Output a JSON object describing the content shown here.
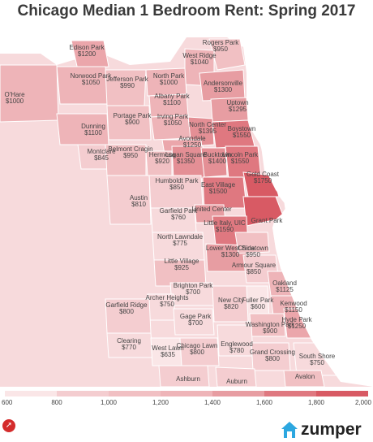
{
  "title": "Chicago Median 1 Bedroom Rent: Spring 2017",
  "neighborhoods": [
    {
      "name": "Edison Park",
      "rent": "$1200",
      "color": "#eba6ab"
    },
    {
      "name": "Rogers Park",
      "rent": "$950",
      "color": "#f1c0c3"
    },
    {
      "name": "West Ridge",
      "rent": "$1040",
      "color": "#eeb4b8"
    },
    {
      "name": "Norwood Park",
      "rent": "$1050",
      "color": "#eeb4b8"
    },
    {
      "name": "Jefferson Park",
      "rent": "$990",
      "color": "#f1c0c3"
    },
    {
      "name": "North Park",
      "rent": "$1000",
      "color": "#eeb4b8"
    },
    {
      "name": "Andersonville",
      "rent": "$1300",
      "color": "#e79da2"
    },
    {
      "name": "Albany Park",
      "rent": "$1100",
      "color": "#eeb4b8"
    },
    {
      "name": "O'Hare",
      "rent": "$1000",
      "color": "#eeb4b8"
    },
    {
      "name": "Uptown",
      "rent": "$1295",
      "color": "#e79da2"
    },
    {
      "name": "Portage Park",
      "rent": "$900",
      "color": "#f1c0c3"
    },
    {
      "name": "Irving Park",
      "rent": "$1050",
      "color": "#eeb4b8"
    },
    {
      "name": "North Center",
      "rent": "$1395",
      "color": "#e48f95"
    },
    {
      "name": "Boystown",
      "rent": "$1550",
      "color": "#df7880"
    },
    {
      "name": "Dunning",
      "rent": "$1100",
      "color": "#eeb4b8"
    },
    {
      "name": "Avondale",
      "rent": "$1250",
      "color": "#eba6ab"
    },
    {
      "name": "Montclare",
      "rent": "$845",
      "color": "#f4cdd0"
    },
    {
      "name": "Belmont Cragin",
      "rent": "$950",
      "color": "#f1c0c3"
    },
    {
      "name": "Hermosa",
      "rent": "$920",
      "color": "#f1c0c3"
    },
    {
      "name": "Logan Square",
      "rent": "$1350",
      "color": "#e48f95"
    },
    {
      "name": "Bucktown",
      "rent": "$1400",
      "color": "#e48f95"
    },
    {
      "name": "Lincoln Park",
      "rent": "$1550",
      "color": "#df7880"
    },
    {
      "name": "Gold Coast",
      "rent": "$1750",
      "color": "#d85a64"
    },
    {
      "name": "Humboldt Park",
      "rent": "$850",
      "color": "#f4cdd0"
    },
    {
      "name": "East Village",
      "rent": "$1500",
      "color": "#df7880"
    },
    {
      "name": "Austin",
      "rent": "$810",
      "color": "#f4cdd0"
    },
    {
      "name": "United Center",
      "rent": "",
      "color": "#e79da2"
    },
    {
      "name": "Grant Park",
      "rent": "",
      "color": "#d85a64"
    },
    {
      "name": "Garfield Park",
      "rent": "$760",
      "color": "#f7dadc"
    },
    {
      "name": "Little Italy, UIC",
      "rent": "$1590",
      "color": "#df7880"
    },
    {
      "name": "North Lawndale",
      "rent": "$775",
      "color": "#f7dadc"
    },
    {
      "name": "Lower West Side",
      "rent": "$1300",
      "color": "#e79da2"
    },
    {
      "name": "Chinatown",
      "rent": "$950",
      "color": "#f1c0c3"
    },
    {
      "name": "Armour Square",
      "rent": "$850",
      "color": "#f4cdd0"
    },
    {
      "name": "Little Village",
      "rent": "$925",
      "color": "#f1c0c3"
    },
    {
      "name": "Brighton Park",
      "rent": "$700",
      "color": "#f7dadc"
    },
    {
      "name": "Oakland",
      "rent": "$1125",
      "color": "#eeb4b8"
    },
    {
      "name": "Archer Heights",
      "rent": "$750",
      "color": "#f7dadc"
    },
    {
      "name": "New City",
      "rent": "$820",
      "color": "#f4cdd0"
    },
    {
      "name": "Fuller Park",
      "rent": "$600",
      "color": "#fae6e7"
    },
    {
      "name": "Kenwood",
      "rent": "$1150",
      "color": "#eeb4b8"
    },
    {
      "name": "Garfield Ridge",
      "rent": "$800",
      "color": "#f4cdd0"
    },
    {
      "name": "Gage Park",
      "rent": "$700",
      "color": "#f7dadc"
    },
    {
      "name": "Washington Park",
      "rent": "$900",
      "color": "#f1c0c3"
    },
    {
      "name": "Hyde Park",
      "rent": "$1250",
      "color": "#eba6ab"
    },
    {
      "name": "Clearing",
      "rent": "$770",
      "color": "#f7dadc"
    },
    {
      "name": "West Lawn",
      "rent": "$635",
      "color": "#fae6e7"
    },
    {
      "name": "Chicago Lawn",
      "rent": "$800",
      "color": "#f4cdd0"
    },
    {
      "name": "Englewood",
      "rent": "$780",
      "color": "#f7dadc"
    },
    {
      "name": "Grand Crossing",
      "rent": "$800",
      "color": "#f4cdd0"
    },
    {
      "name": "South Shore",
      "rent": "$750",
      "color": "#f7dadc"
    },
    {
      "name": "Ashburn",
      "rent": "",
      "color": "#f4cdd0"
    },
    {
      "name": "Auburn",
      "rent": "",
      "color": "#f4cdd0"
    },
    {
      "name": "Avalon",
      "rent": "",
      "color": "#f1c0c3"
    }
  ],
  "legend": {
    "ticks": [
      "600",
      "800",
      "1,000",
      "1,200",
      "1,400",
      "1,600",
      "1,800",
      "2,000"
    ],
    "colors": [
      "#fae6e7",
      "#f4cdd0",
      "#f1c0c3",
      "#eeb4b8",
      "#e79da2",
      "#df7880",
      "#d85a64"
    ]
  },
  "brand": {
    "name": "zumper"
  },
  "icons": {
    "share": "share-icon",
    "brand": "house-icon"
  },
  "colors": {
    "lake": "#ffffff",
    "border": "#ffffff",
    "brand_blue": "#2ca7e0",
    "share_red": "#d42c2c"
  }
}
